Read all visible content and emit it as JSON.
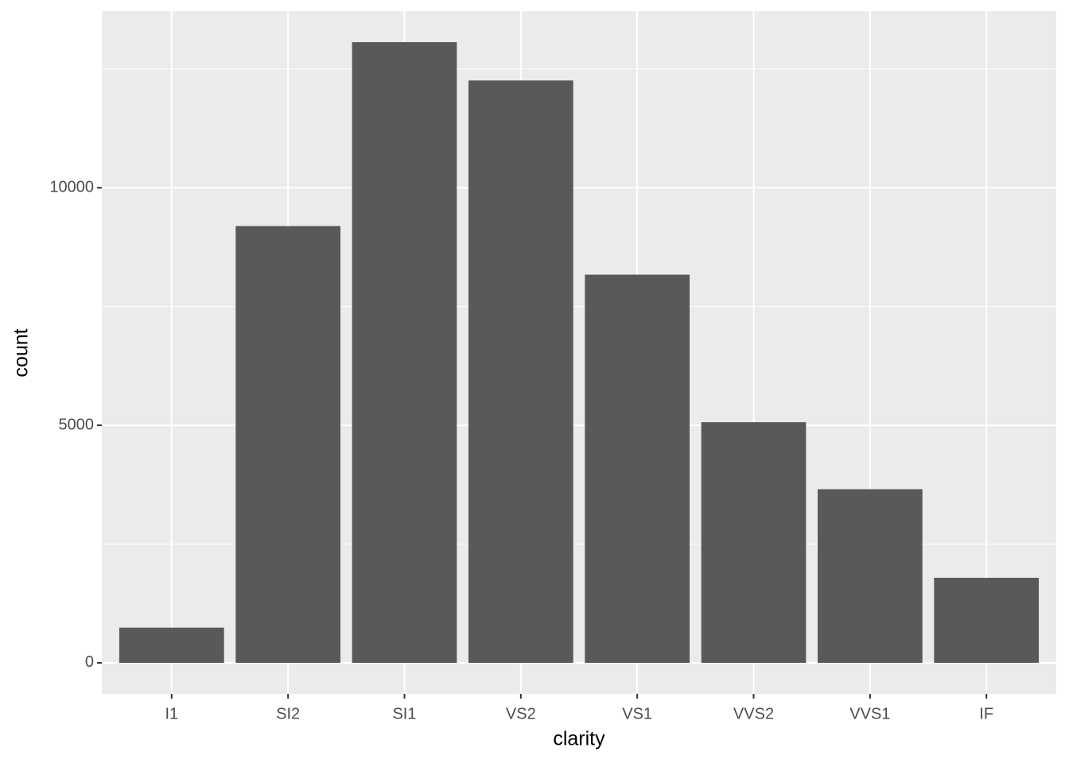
{
  "chart_data": {
    "type": "bar",
    "x_label": "clarity",
    "y_label": "count",
    "categories": [
      "I1",
      "SI2",
      "SI1",
      "VS2",
      "VS1",
      "VVS2",
      "VVS1",
      "IF"
    ],
    "values": [
      741,
      9194,
      13065,
      12258,
      8171,
      5066,
      3655,
      1790
    ],
    "color": "#595959",
    "ylim": [
      -653,
      13718
    ],
    "yticks": [
      0,
      5000,
      10000
    ],
    "minor_yticks": [
      2500,
      7500,
      12500
    ],
    "grid": true
  }
}
